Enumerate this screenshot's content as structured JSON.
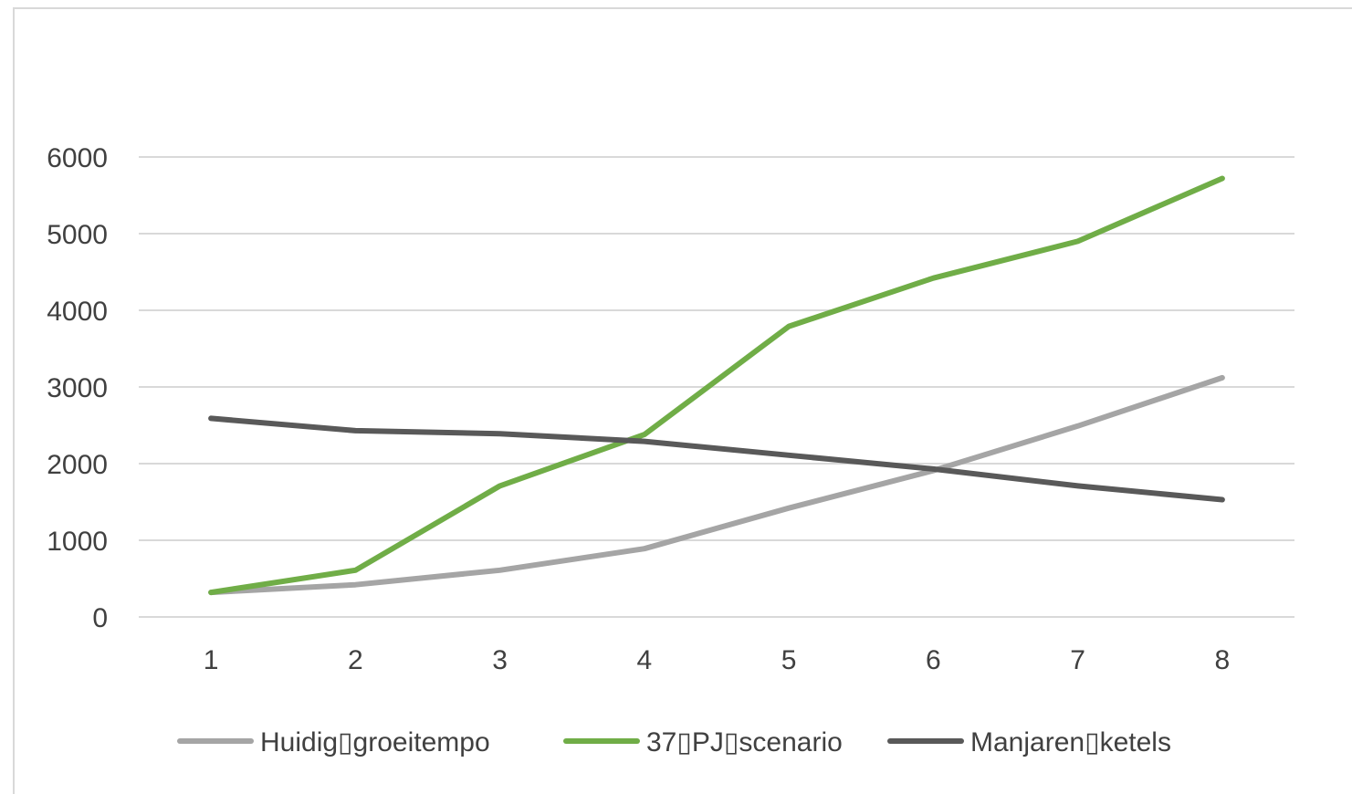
{
  "chart_data": {
    "type": "line",
    "title": "",
    "xlabel": "",
    "ylabel": "",
    "categories": [
      "1",
      "2",
      "3",
      "4",
      "5",
      "6",
      "7",
      "8"
    ],
    "ylim": [
      0,
      6000
    ],
    "yticks": [
      "0",
      "1000",
      "2000",
      "3000",
      "4000",
      "5000",
      "6000"
    ],
    "grid": "horizontal",
    "legend_position": "bottom",
    "series": [
      {
        "name": "Huidig▯groeitempo",
        "color": "#a5a5a5",
        "values": [
          320,
          420,
          610,
          890,
          1420,
          1910,
          2490,
          3120
        ]
      },
      {
        "name": "37▯PJ▯scenario",
        "color": "#70ad47",
        "values": [
          320,
          610,
          1710,
          2380,
          3790,
          4420,
          4900,
          5720
        ]
      },
      {
        "name": "Manjaren▯ketels",
        "color": "#595959",
        "values": [
          2590,
          2430,
          2390,
          2290,
          2110,
          1930,
          1710,
          1530
        ]
      }
    ]
  }
}
